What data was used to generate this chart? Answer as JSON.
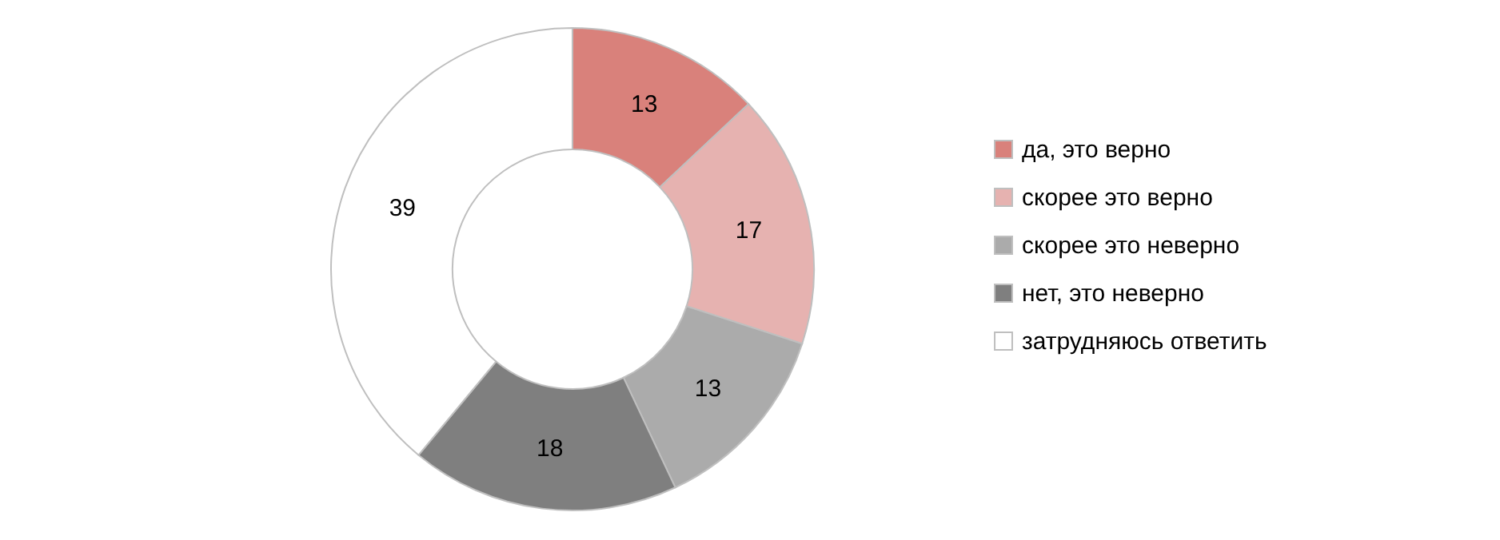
{
  "chart_data": {
    "type": "donut",
    "categories": [
      "да, это верно",
      "скорее это верно",
      "скорее это неверно",
      "нет, это неверно",
      "затрудняюсь ответить"
    ],
    "values": [
      13,
      17,
      13,
      18,
      39
    ],
    "colors": [
      "#d9817b",
      "#e6b2b0",
      "#ababab",
      "#7f7f7f",
      "#ffffff"
    ],
    "data_labels": true,
    "legend": "right"
  }
}
